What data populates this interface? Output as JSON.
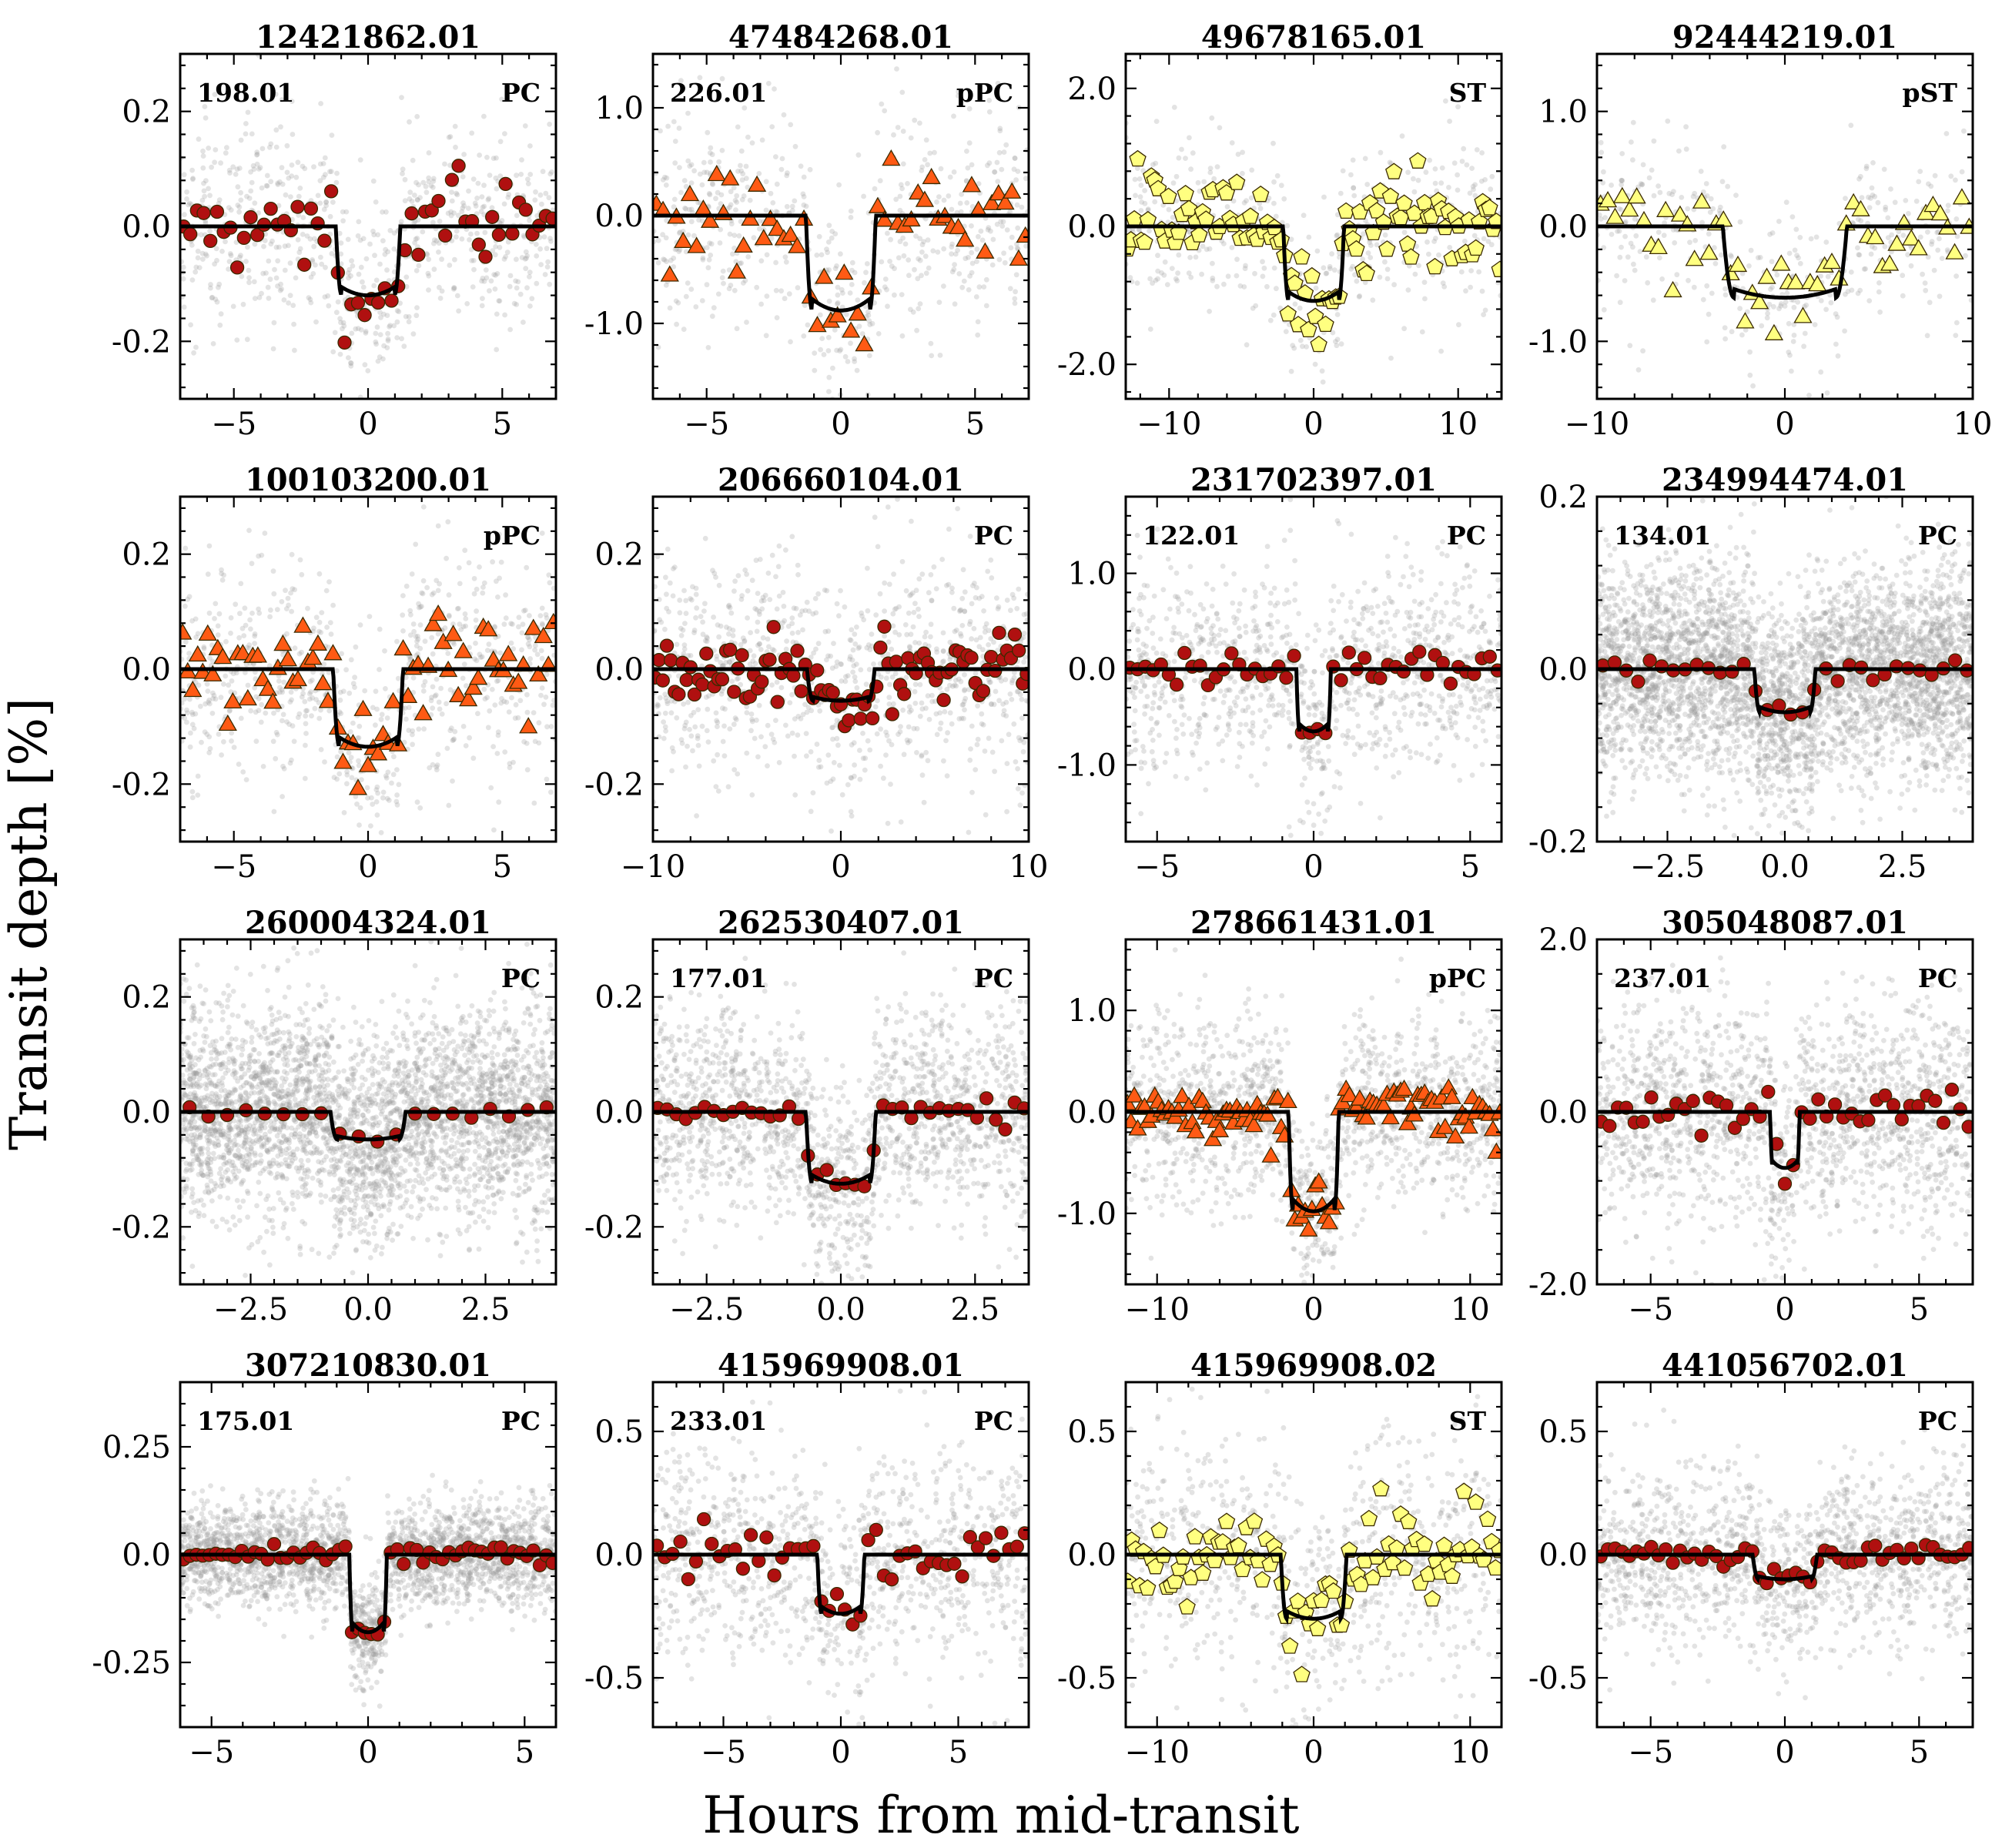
{
  "figure": {
    "ylabel": "Transit depth [%]",
    "xlabel": "Hours from mid-transit",
    "colors": {
      "PC": "#b01010",
      "pPC": "#ff5a14",
      "ST": "#ffff80",
      "pST": "#ffff80",
      "raw": "#9a9a9a",
      "model": "#000000",
      "marker_edge": "#3a2a00"
    }
  },
  "chart_data": [
    {
      "type": "scatter",
      "title": "12421862.01",
      "toi": "198.01",
      "disposition": "PC",
      "marker": "circle",
      "xlim": [
        -7,
        7
      ],
      "ylim": [
        -0.3,
        0.3
      ],
      "xticks": [
        -5,
        0,
        5
      ],
      "xtick_labels": [
        "−5",
        "0",
        "5"
      ],
      "yticks": [
        -0.2,
        0,
        0.2
      ],
      "ytick_labels": [
        "-0.2",
        "0.0",
        "0.2"
      ],
      "depth": -0.12,
      "half_duration": 1.2,
      "raw_points": 750,
      "raw_scatter": 0.09,
      "binned_points": 56,
      "binned_scatter": 0.035
    },
    {
      "type": "scatter",
      "title": "47484268.01",
      "toi": "226.01",
      "disposition": "pPC",
      "marker": "triangle",
      "xlim": [
        -7,
        7
      ],
      "ylim": [
        -1.7,
        1.5
      ],
      "xticks": [
        -5,
        0,
        5
      ],
      "xtick_labels": [
        "−5",
        "0",
        "5"
      ],
      "yticks": [
        -1,
        0,
        1
      ],
      "ytick_labels": [
        "-1.0",
        "0.0",
        "1.0"
      ],
      "depth": -0.88,
      "half_duration": 1.3,
      "raw_points": 600,
      "raw_scatter": 0.5,
      "binned_points": 56,
      "binned_scatter": 0.22
    },
    {
      "type": "scatter",
      "title": "49678165.01",
      "toi": "",
      "disposition": "ST",
      "marker": "pentagon",
      "xlim": [
        -13,
        13
      ],
      "ylim": [
        -2.5,
        2.5
      ],
      "xticks": [
        -10,
        0,
        10
      ],
      "xtick_labels": [
        "−10",
        "0",
        "10"
      ],
      "yticks": [
        -2,
        0,
        2
      ],
      "ytick_labels": [
        "-2.0",
        "0.0",
        "2.0"
      ],
      "depth": -1.08,
      "half_duration": 2.1,
      "raw_points": 500,
      "raw_scatter": 0.6,
      "binned_points": 110,
      "binned_scatter": 0.35
    },
    {
      "type": "scatter",
      "title": "92444219.01",
      "toi": "",
      "disposition": "pST",
      "marker": "triangle",
      "xlim": [
        -10,
        10
      ],
      "ylim": [
        -1.5,
        1.5
      ],
      "xticks": [
        -10,
        0,
        10
      ],
      "xtick_labels": [
        "−10",
        "0",
        "10"
      ],
      "yticks": [
        -1,
        0,
        1
      ],
      "ytick_labels": [
        "-1.0",
        "0.0",
        "1.0"
      ],
      "depth": -0.62,
      "half_duration": 3.3,
      "raw_points": 380,
      "raw_scatter": 0.4,
      "binned_points": 52,
      "binned_scatter": 0.18
    },
    {
      "type": "scatter",
      "title": "100103200.01",
      "toi": "",
      "disposition": "pPC",
      "marker": "triangle",
      "xlim": [
        -7,
        7
      ],
      "ylim": [
        -0.3,
        0.3
      ],
      "xticks": [
        -5,
        0,
        5
      ],
      "xtick_labels": [
        "−5",
        "0",
        "5"
      ],
      "yticks": [
        -0.2,
        0,
        0.2
      ],
      "ytick_labels": [
        "-0.2",
        "0.0",
        "0.2"
      ],
      "depth": -0.135,
      "half_duration": 1.3,
      "raw_points": 750,
      "raw_scatter": 0.1,
      "binned_points": 75,
      "binned_scatter": 0.04
    },
    {
      "type": "scatter",
      "title": "206660104.01",
      "toi": "",
      "disposition": "PC",
      "marker": "circle",
      "xlim": [
        -10,
        10
      ],
      "ylim": [
        -0.3,
        0.3
      ],
      "xticks": [
        -10,
        0,
        10
      ],
      "xtick_labels": [
        "−10",
        "0",
        "10"
      ],
      "yticks": [
        -0.2,
        0,
        0.2
      ],
      "ytick_labels": [
        "-0.2",
        "0.0",
        "0.2"
      ],
      "depth": -0.055,
      "half_duration": 1.8,
      "raw_points": 900,
      "raw_scatter": 0.1,
      "binned_points": 95,
      "binned_scatter": 0.025
    },
    {
      "type": "scatter",
      "title": "231702397.01",
      "toi": "122.01",
      "disposition": "PC",
      "marker": "circle",
      "xlim": [
        -6,
        6
      ],
      "ylim": [
        -1.8,
        1.8
      ],
      "xticks": [
        -5,
        0,
        5
      ],
      "xtick_labels": [
        "−5",
        "0",
        "5"
      ],
      "yticks": [
        -1,
        0,
        1
      ],
      "ytick_labels": [
        "-1.0",
        "0.0",
        "1.0"
      ],
      "depth": -0.65,
      "half_duration": 0.55,
      "raw_points": 1100,
      "raw_scatter": 0.55,
      "binned_points": 48,
      "binned_scatter": 0.1
    },
    {
      "type": "scatter",
      "title": "234994474.01",
      "toi": "134.01",
      "disposition": "PC",
      "marker": "circle",
      "xlim": [
        -4,
        4
      ],
      "ylim": [
        -0.2,
        0.2
      ],
      "xticks": [
        -2.5,
        0,
        2.5
      ],
      "xtick_labels": [
        "−2.5",
        "0.0",
        "2.5"
      ],
      "yticks": [
        -0.2,
        0,
        0.2
      ],
      "ytick_labels": [
        "-0.2",
        "0.0",
        "0.2"
      ],
      "depth": -0.05,
      "half_duration": 0.65,
      "raw_points": 4200,
      "raw_scatter": 0.06,
      "binned_points": 32,
      "binned_scatter": 0.006
    },
    {
      "type": "scatter",
      "title": "260004324.01",
      "toi": "",
      "disposition": "PC",
      "marker": "circle",
      "xlim": [
        -4,
        4
      ],
      "ylim": [
        -0.3,
        0.3
      ],
      "xticks": [
        -2.5,
        0,
        2.5
      ],
      "xtick_labels": [
        "−2.5",
        "0.0",
        "2.5"
      ],
      "yticks": [
        -0.2,
        0,
        0.2
      ],
      "ytick_labels": [
        "-0.2",
        "0.0",
        "0.2"
      ],
      "depth": -0.048,
      "half_duration": 0.8,
      "raw_points": 3600,
      "raw_scatter": 0.09,
      "binned_points": 20,
      "binned_scatter": 0.006
    },
    {
      "type": "scatter",
      "title": "262530407.01",
      "toi": "177.01",
      "disposition": "PC",
      "marker": "circle",
      "xlim": [
        -3.5,
        3.5
      ],
      "ylim": [
        -0.3,
        0.3
      ],
      "xticks": [
        -2.5,
        0,
        2.5
      ],
      "xtick_labels": [
        "−2.5",
        "0.0",
        "2.5"
      ],
      "yticks": [
        -0.2,
        0,
        0.2
      ],
      "ytick_labels": [
        "-0.2",
        "0.0",
        "0.2"
      ],
      "depth": -0.125,
      "half_duration": 0.65,
      "raw_points": 1700,
      "raw_scatter": 0.09,
      "binned_points": 40,
      "binned_scatter": 0.01
    },
    {
      "type": "scatter",
      "title": "278661431.01",
      "toi": "",
      "disposition": "pPC",
      "marker": "triangle",
      "xlim": [
        -12,
        12
      ],
      "ylim": [
        -1.7,
        1.7
      ],
      "xticks": [
        -10,
        0,
        10
      ],
      "xtick_labels": [
        "−10",
        "0",
        "10"
      ],
      "yticks": [
        -1,
        0,
        1
      ],
      "ytick_labels": [
        "-1.0",
        "0.0",
        "1.0"
      ],
      "depth": -0.98,
      "half_duration": 1.6,
      "raw_points": 1400,
      "raw_scatter": 0.45,
      "binned_points": 110,
      "binned_scatter": 0.13
    },
    {
      "type": "scatter",
      "title": "305048087.01",
      "toi": "237.01",
      "disposition": "PC",
      "marker": "circle",
      "xlim": [
        -7,
        7
      ],
      "ylim": [
        -2,
        2
      ],
      "xticks": [
        -5,
        0,
        5
      ],
      "xtick_labels": [
        "−5",
        "0",
        "5"
      ],
      "yticks": [
        -2,
        0,
        2
      ],
      "ytick_labels": [
        "-2.0",
        "0.0",
        "2.0"
      ],
      "depth": -0.65,
      "half_duration": 0.55,
      "raw_points": 1700,
      "raw_scatter": 0.65,
      "binned_points": 45,
      "binned_scatter": 0.12
    },
    {
      "type": "scatter",
      "title": "307210830.01",
      "toi": "175.01",
      "disposition": "PC",
      "marker": "circle",
      "xlim": [
        -6,
        6
      ],
      "ylim": [
        -0.4,
        0.4
      ],
      "xticks": [
        -5,
        0,
        5
      ],
      "xtick_labels": [
        "−5",
        "0",
        "5"
      ],
      "yticks": [
        -0.25,
        0,
        0.25
      ],
      "ytick_labels": [
        "-0.25",
        "0.0",
        "0.25"
      ],
      "depth": -0.18,
      "half_duration": 0.6,
      "raw_points": 2600,
      "raw_scatter": 0.06,
      "binned_points": 58,
      "binned_scatter": 0.01
    },
    {
      "type": "scatter",
      "title": "415969908.01",
      "toi": "233.01",
      "disposition": "PC",
      "marker": "circle",
      "xlim": [
        -8,
        8
      ],
      "ylim": [
        -0.7,
        0.7
      ],
      "xticks": [
        -5,
        0,
        5
      ],
      "xtick_labels": [
        "−5",
        "0",
        "5"
      ],
      "yticks": [
        -0.5,
        0,
        0.5
      ],
      "ytick_labels": [
        "-0.5",
        "0.0",
        "0.5"
      ],
      "depth": -0.24,
      "half_duration": 1.0,
      "raw_points": 1100,
      "raw_scatter": 0.22,
      "binned_points": 48,
      "binned_scatter": 0.06
    },
    {
      "type": "scatter",
      "title": "415969908.02",
      "toi": "",
      "disposition": "ST",
      "marker": "pentagon",
      "xlim": [
        -12,
        12
      ],
      "ylim": [
        -0.7,
        0.7
      ],
      "xticks": [
        -10,
        0,
        10
      ],
      "xtick_labels": [
        "−10",
        "0",
        "10"
      ],
      "yticks": [
        -0.5,
        0,
        0.5
      ],
      "ytick_labels": [
        "-0.5",
        "0.0",
        "0.5"
      ],
      "depth": -0.26,
      "half_duration": 2.1,
      "raw_points": 800,
      "raw_scatter": 0.25,
      "binned_points": 95,
      "binned_scatter": 0.1
    },
    {
      "type": "scatter",
      "title": "441056702.01",
      "toi": "",
      "disposition": "PC",
      "marker": "circle",
      "xlim": [
        -7,
        7
      ],
      "ylim": [
        -0.7,
        0.7
      ],
      "xticks": [
        -5,
        0,
        5
      ],
      "xtick_labels": [
        "−5",
        "0",
        "5"
      ],
      "yticks": [
        -0.5,
        0,
        0.5
      ],
      "ytick_labels": [
        "-0.5",
        "0.0",
        "0.5"
      ],
      "depth": -0.1,
      "half_duration": 1.2,
      "raw_points": 1500,
      "raw_scatter": 0.18,
      "binned_points": 52,
      "binned_scatter": 0.02
    }
  ]
}
